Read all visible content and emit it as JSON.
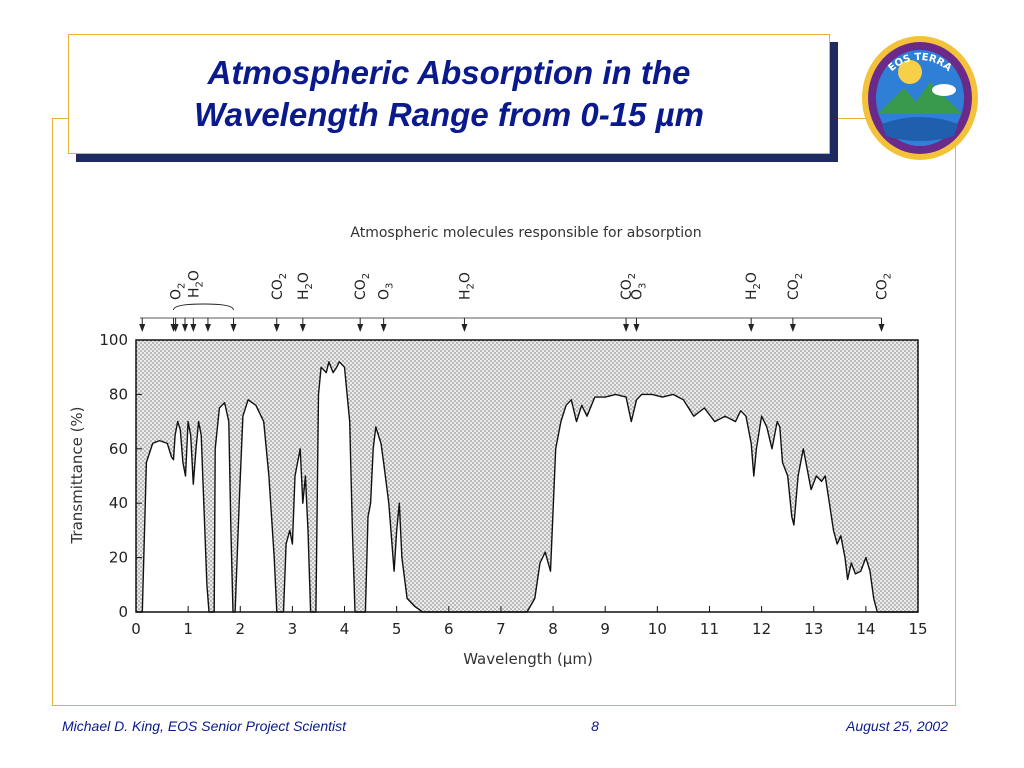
{
  "slide": {
    "title_line1": "Atmospheric Absorption in the",
    "title_line2": "Wavelength Range from 0-15 µm",
    "logo_text": "EOS TERRA",
    "footer_left": "Michael D. King, EOS Senior Project Scientist",
    "page_number": "8",
    "footer_right": "August 25, 2002",
    "colors": {
      "title": "#0a1a8c",
      "frame": "#e7b23a",
      "shadow": "#1f2a63"
    }
  },
  "chart_data": {
    "type": "area",
    "title": "Atmospheric molecules responsible for absorption",
    "xlabel": "Wavelength (µm)",
    "ylabel": "Transmittance (%)",
    "xlim": [
      0,
      15
    ],
    "ylim": [
      0,
      100
    ],
    "xticks": [
      "0",
      "1",
      "2",
      "3",
      "4",
      "5",
      "6",
      "7",
      "8",
      "9",
      "10",
      "11",
      "12",
      "13",
      "14",
      "15"
    ],
    "yticks": [
      "0",
      "20",
      "40",
      "60",
      "80",
      "100"
    ],
    "fill": "stippled absorption region above transmittance curve",
    "molecule_markers": [
      {
        "label": "O2",
        "x": 0.76
      },
      {
        "label": "H2O",
        "x": 1.1,
        "arrows": [
          0.72,
          0.94,
          1.1,
          1.38,
          1.87
        ]
      },
      {
        "label": "CO2",
        "x": 2.7
      },
      {
        "label": "H2O",
        "x": 3.2
      },
      {
        "label": "CO2",
        "x": 4.3
      },
      {
        "label": "O3",
        "x": 4.75
      },
      {
        "label": "H2O",
        "x": 6.3
      },
      {
        "label": "CO2",
        "x": 9.4
      },
      {
        "label": "O3",
        "x": 9.6
      },
      {
        "label": "H2O",
        "x": 11.8
      },
      {
        "label": "CO2",
        "x": 12.6
      },
      {
        "label": "CO2",
        "x": 14.3
      }
    ],
    "transmittance": [
      [
        0,
        0
      ],
      [
        0.12,
        0
      ],
      [
        0.2,
        55
      ],
      [
        0.32,
        62
      ],
      [
        0.45,
        63
      ],
      [
        0.6,
        62
      ],
      [
        0.68,
        57
      ],
      [
        0.72,
        56
      ],
      [
        0.75,
        65
      ],
      [
        0.8,
        70
      ],
      [
        0.85,
        67
      ],
      [
        0.9,
        55
      ],
      [
        0.95,
        50
      ],
      [
        1.0,
        70
      ],
      [
        1.05,
        65
      ],
      [
        1.1,
        47
      ],
      [
        1.15,
        60
      ],
      [
        1.2,
        70
      ],
      [
        1.25,
        65
      ],
      [
        1.3,
        40
      ],
      [
        1.36,
        10
      ],
      [
        1.4,
        0
      ],
      [
        1.5,
        0
      ],
      [
        1.52,
        60
      ],
      [
        1.6,
        75
      ],
      [
        1.7,
        77
      ],
      [
        1.78,
        70
      ],
      [
        1.82,
        30
      ],
      [
        1.86,
        0
      ],
      [
        1.9,
        0
      ],
      [
        1.98,
        40
      ],
      [
        2.05,
        72
      ],
      [
        2.15,
        78
      ],
      [
        2.3,
        76
      ],
      [
        2.45,
        70
      ],
      [
        2.55,
        50
      ],
      [
        2.65,
        20
      ],
      [
        2.7,
        0
      ],
      [
        2.83,
        0
      ],
      [
        2.88,
        25
      ],
      [
        2.95,
        30
      ],
      [
        3.0,
        25
      ],
      [
        3.05,
        50
      ],
      [
        3.15,
        60
      ],
      [
        3.2,
        40
      ],
      [
        3.25,
        50
      ],
      [
        3.3,
        30
      ],
      [
        3.35,
        0
      ],
      [
        3.45,
        0
      ],
      [
        3.5,
        80
      ],
      [
        3.55,
        90
      ],
      [
        3.65,
        88
      ],
      [
        3.7,
        92
      ],
      [
        3.78,
        88
      ],
      [
        3.85,
        90
      ],
      [
        3.9,
        92
      ],
      [
        4.0,
        90
      ],
      [
        4.1,
        70
      ],
      [
        4.15,
        30
      ],
      [
        4.2,
        0
      ],
      [
        4.4,
        0
      ],
      [
        4.45,
        35
      ],
      [
        4.5,
        40
      ],
      [
        4.55,
        60
      ],
      [
        4.6,
        68
      ],
      [
        4.7,
        62
      ],
      [
        4.75,
        55
      ],
      [
        4.85,
        40
      ],
      [
        4.95,
        15
      ],
      [
        5.0,
        30
      ],
      [
        5.05,
        40
      ],
      [
        5.1,
        20
      ],
      [
        5.2,
        5
      ],
      [
        5.35,
        2
      ],
      [
        5.5,
        0
      ],
      [
        7.5,
        0
      ],
      [
        7.65,
        5
      ],
      [
        7.75,
        18
      ],
      [
        7.85,
        22
      ],
      [
        7.95,
        15
      ],
      [
        8.05,
        60
      ],
      [
        8.15,
        70
      ],
      [
        8.25,
        76
      ],
      [
        8.35,
        78
      ],
      [
        8.45,
        70
      ],
      [
        8.55,
        76
      ],
      [
        8.65,
        72
      ],
      [
        8.8,
        79
      ],
      [
        9.0,
        79
      ],
      [
        9.2,
        80
      ],
      [
        9.4,
        79
      ],
      [
        9.5,
        70
      ],
      [
        9.6,
        78
      ],
      [
        9.7,
        80
      ],
      [
        9.9,
        80
      ],
      [
        10.1,
        79
      ],
      [
        10.3,
        80
      ],
      [
        10.5,
        78
      ],
      [
        10.7,
        72
      ],
      [
        10.9,
        75
      ],
      [
        11.1,
        70
      ],
      [
        11.3,
        72
      ],
      [
        11.5,
        70
      ],
      [
        11.6,
        74
      ],
      [
        11.7,
        72
      ],
      [
        11.8,
        62
      ],
      [
        11.85,
        50
      ],
      [
        11.9,
        60
      ],
      [
        12.0,
        72
      ],
      [
        12.1,
        68
      ],
      [
        12.2,
        60
      ],
      [
        12.3,
        70
      ],
      [
        12.35,
        68
      ],
      [
        12.4,
        55
      ],
      [
        12.5,
        50
      ],
      [
        12.58,
        35
      ],
      [
        12.62,
        32
      ],
      [
        12.7,
        50
      ],
      [
        12.8,
        60
      ],
      [
        12.88,
        52
      ],
      [
        12.95,
        45
      ],
      [
        13.05,
        50
      ],
      [
        13.15,
        48
      ],
      [
        13.22,
        50
      ],
      [
        13.3,
        40
      ],
      [
        13.38,
        30
      ],
      [
        13.45,
        25
      ],
      [
        13.52,
        28
      ],
      [
        13.6,
        20
      ],
      [
        13.65,
        12
      ],
      [
        13.72,
        18
      ],
      [
        13.8,
        14
      ],
      [
        13.9,
        15
      ],
      [
        14.0,
        20
      ],
      [
        14.08,
        15
      ],
      [
        14.15,
        5
      ],
      [
        14.22,
        0
      ],
      [
        15,
        0
      ]
    ]
  }
}
